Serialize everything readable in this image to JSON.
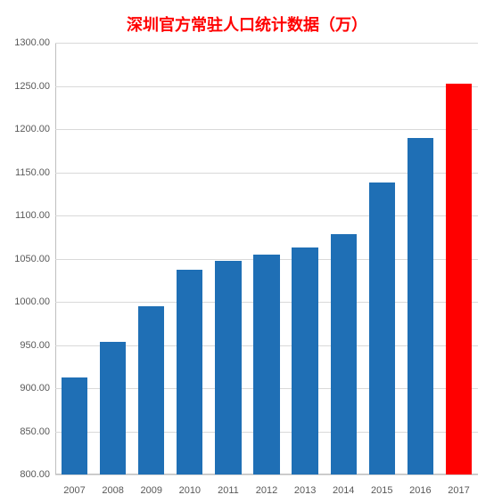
{
  "chart": {
    "type": "bar",
    "title": "深圳官方常驻人口统计数据（万）",
    "title_color": "#ff0000",
    "title_fontsize": 18,
    "title_fontweight": "bold",
    "background_color": "#ffffff",
    "grid_color": "#d9d9d9",
    "axis_color": "#bfbfbf",
    "label_color": "#595959",
    "label_fontsize": 11,
    "ylim": [
      800,
      1300
    ],
    "ytick_step": 50,
    "yticks": [
      "800.00",
      "850.00",
      "900.00",
      "950.00",
      "1000.00",
      "1050.00",
      "1100.00",
      "1150.00",
      "1200.00",
      "1250.00",
      "1300.00"
    ],
    "categories": [
      "2007",
      "2008",
      "2009",
      "2010",
      "2011",
      "2012",
      "2013",
      "2014",
      "2015",
      "2016",
      "2017"
    ],
    "values": [
      912,
      954,
      995,
      1037,
      1047,
      1055,
      1063,
      1078,
      1138,
      1190,
      1253
    ],
    "bar_colors": [
      "#1f6fb5",
      "#1f6fb5",
      "#1f6fb5",
      "#1f6fb5",
      "#1f6fb5",
      "#1f6fb5",
      "#1f6fb5",
      "#1f6fb5",
      "#1f6fb5",
      "#1f6fb5",
      "#ff0000"
    ],
    "bar_width": 0.68
  }
}
